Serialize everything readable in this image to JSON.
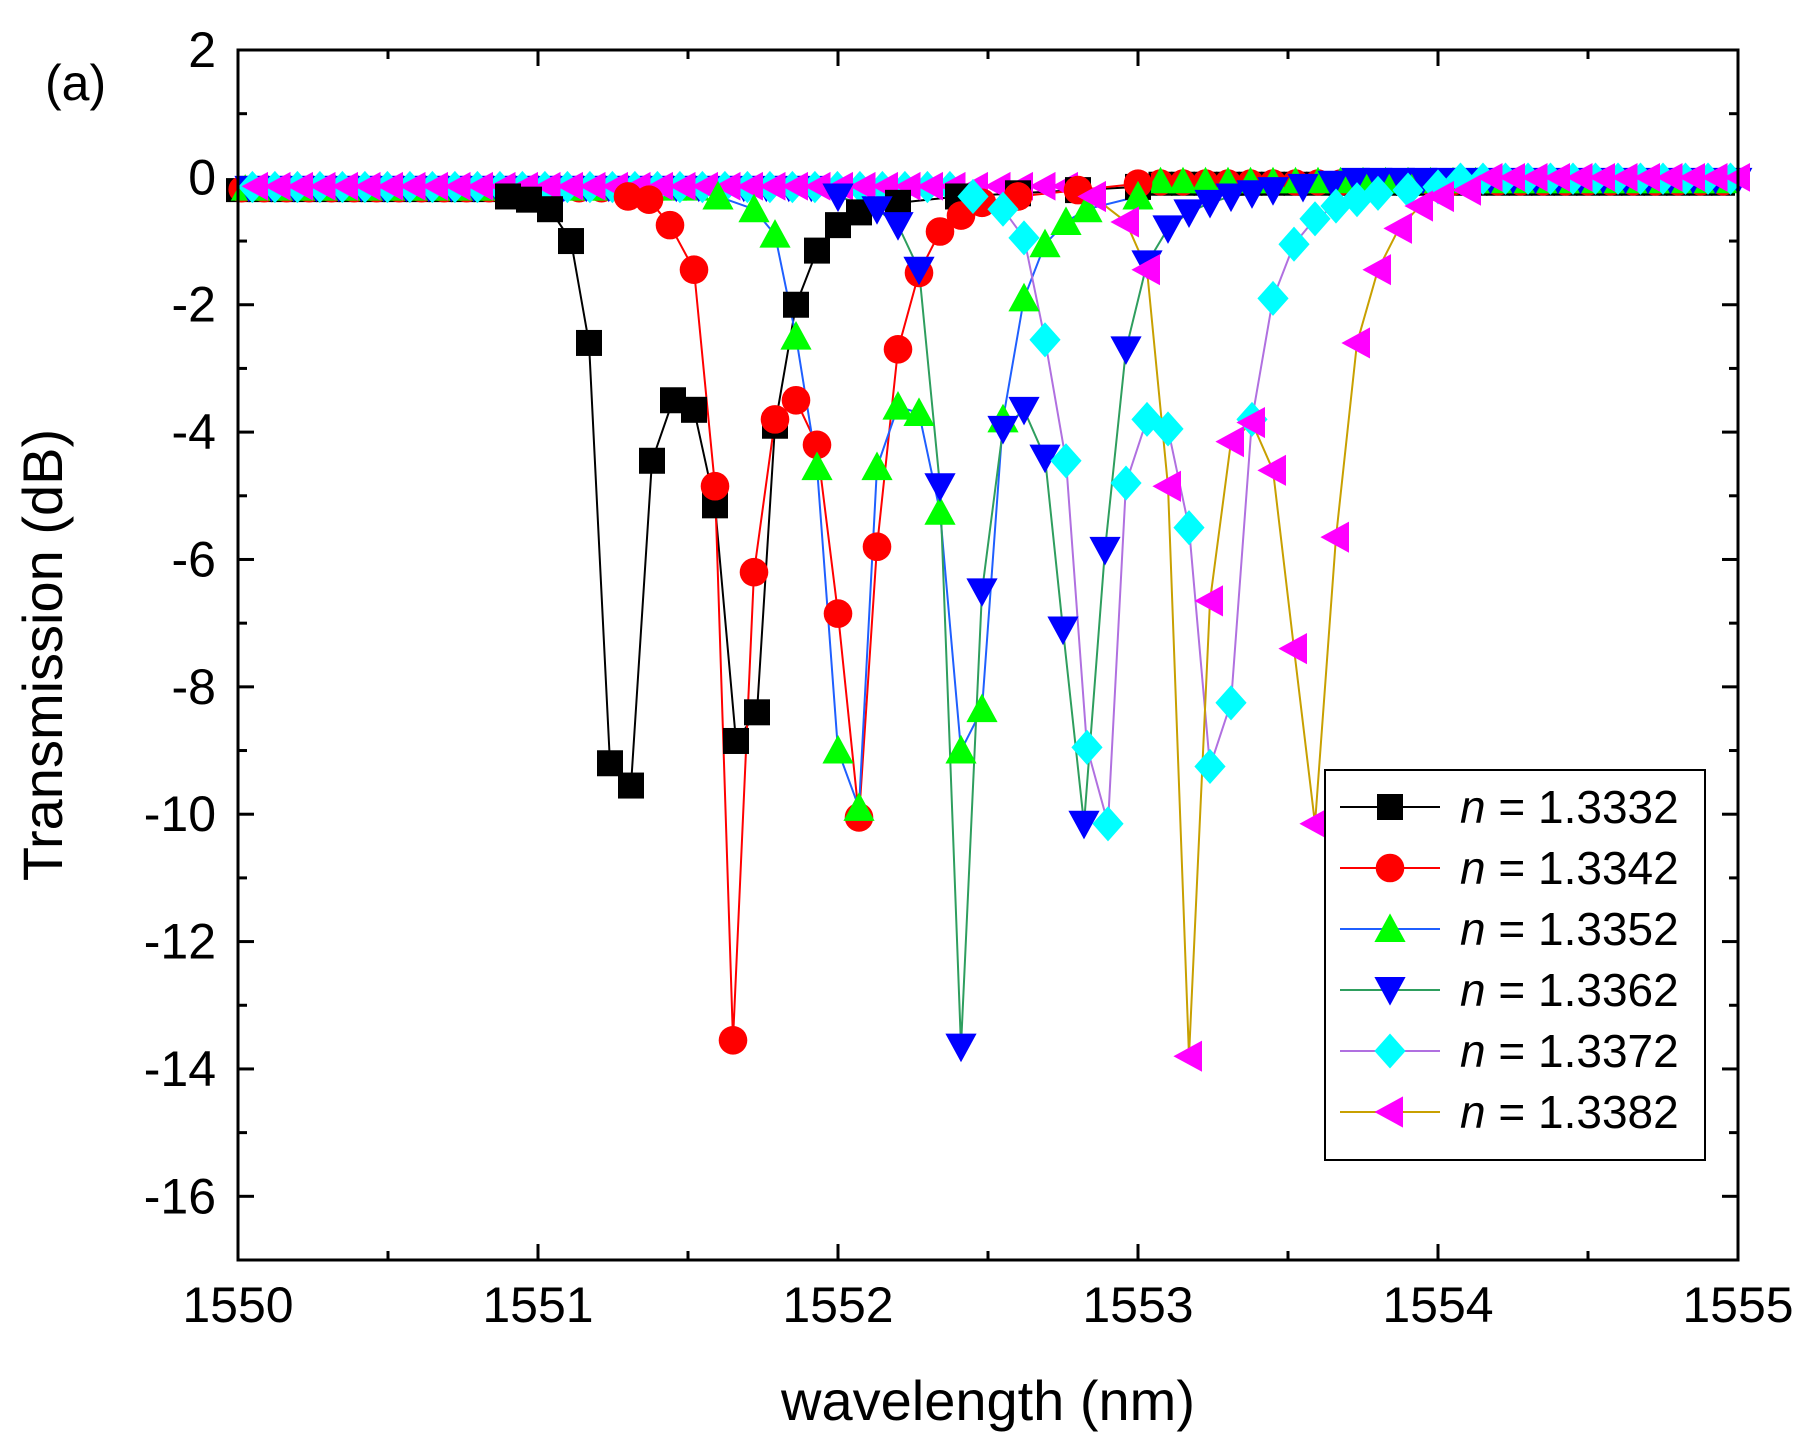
{
  "chart_data": {
    "type": "line",
    "panel_label": "(a)",
    "xlabel": "wavelength (nm)",
    "ylabel": "Transmission (dB)",
    "xlim": [
      1550,
      1555
    ],
    "ylim": [
      -17,
      2
    ],
    "xticks": [
      1550,
      1551,
      1552,
      1553,
      1554,
      1555
    ],
    "xtick_labels": [
      "1550",
      "1551",
      "1552",
      "1553",
      "1554",
      "1555"
    ],
    "yticks": [
      2,
      0,
      -2,
      -4,
      -6,
      -8,
      -10,
      -12,
      -14,
      -16
    ],
    "ytick_labels": [
      "2",
      "0",
      "-2",
      "-4",
      "-6",
      "-8",
      "-10",
      "-12",
      "-14",
      "-16"
    ],
    "legend_position": "bottom-right",
    "legend_prefix": "n",
    "series": [
      {
        "name": "= 1.3332",
        "color": "#000000",
        "line_color": "#000000",
        "marker": "square",
        "x": [
          1550.9,
          1550.97,
          1551.04,
          1551.11,
          1551.17,
          1551.24,
          1551.31,
          1551.38,
          1551.45,
          1551.52,
          1551.59,
          1551.66,
          1551.73,
          1551.79,
          1551.86,
          1551.93,
          1552.0,
          1552.07,
          1552.2,
          1552.4,
          1552.6,
          1552.8,
          1553.0
        ],
        "y": [
          -0.3,
          -0.35,
          -0.5,
          -1.0,
          -2.6,
          -9.2,
          -9.55,
          -4.45,
          -3.5,
          -3.65,
          -5.15,
          -8.85,
          -8.4,
          -3.9,
          -2.0,
          -1.15,
          -0.75,
          -0.55,
          -0.4,
          -0.3,
          -0.25,
          -0.2,
          -0.15
        ]
      },
      {
        "name": "= 1.3342",
        "color": "#ff0000",
        "line_color": "#ff0000",
        "marker": "circle",
        "x": [
          1551.3,
          1551.37,
          1551.44,
          1551.52,
          1551.59,
          1551.65,
          1551.72,
          1551.79,
          1551.86,
          1551.93,
          1552.0,
          1552.07,
          1552.13,
          1552.2,
          1552.27,
          1552.34,
          1552.41,
          1552.48,
          1552.6,
          1552.8,
          1553.0
        ],
        "y": [
          -0.3,
          -0.35,
          -0.75,
          -1.45,
          -4.85,
          -13.55,
          -6.2,
          -3.8,
          -3.5,
          -4.2,
          -6.85,
          -10.05,
          -5.8,
          -2.7,
          -1.5,
          -0.85,
          -0.6,
          -0.4,
          -0.3,
          -0.2,
          -0.1
        ]
      },
      {
        "name": "= 1.3352",
        "color": "#00ff00",
        "line_color": "#1f5fff",
        "marker": "triangle-up",
        "x": [
          1551.6,
          1551.72,
          1551.79,
          1551.86,
          1551.93,
          1552.0,
          1552.07,
          1552.13,
          1552.2,
          1552.27,
          1552.34,
          1552.41,
          1552.48,
          1552.55,
          1552.62,
          1552.69,
          1552.76,
          1552.83,
          1553.0
        ],
        "y": [
          -0.3,
          -0.5,
          -0.9,
          -2.5,
          -4.55,
          -9.0,
          -9.9,
          -4.55,
          -3.6,
          -3.7,
          -5.25,
          -9.0,
          -8.35,
          -3.8,
          -1.9,
          -1.05,
          -0.7,
          -0.5,
          -0.3
        ]
      },
      {
        "name": "= 1.3362",
        "color": "#0000ff",
        "line_color": "#2e9e5e",
        "marker": "triangle-down",
        "x": [
          1552.0,
          1552.13,
          1552.2,
          1552.27,
          1552.34,
          1552.41,
          1552.48,
          1552.55,
          1552.62,
          1552.69,
          1552.75,
          1552.82,
          1552.89,
          1552.96,
          1553.03,
          1553.1,
          1553.17,
          1553.24,
          1553.31,
          1553.38,
          1553.45,
          1553.55,
          1553.65
        ],
        "y": [
          -0.3,
          -0.5,
          -0.75,
          -1.45,
          -4.85,
          -13.65,
          -6.5,
          -3.95,
          -3.65,
          -4.4,
          -7.1,
          -10.15,
          -5.85,
          -2.7,
          -1.35,
          -0.8,
          -0.55,
          -0.4,
          -0.3,
          -0.25,
          -0.2,
          -0.15,
          -0.1
        ]
      },
      {
        "name": "= 1.3372",
        "color": "#00ffff",
        "line_color": "#b070e0",
        "marker": "diamond",
        "x": [
          1552.45,
          1552.55,
          1552.62,
          1552.69,
          1552.76,
          1552.83,
          1552.9,
          1552.96,
          1553.03,
          1553.1,
          1553.17,
          1553.24,
          1553.31,
          1553.38,
          1553.45,
          1553.52,
          1553.59,
          1553.66,
          1553.73,
          1553.8,
          1553.9,
          1554.0
        ],
        "y": [
          -0.3,
          -0.5,
          -0.95,
          -2.55,
          -4.45,
          -8.95,
          -10.15,
          -4.8,
          -3.8,
          -3.95,
          -5.5,
          -9.25,
          -8.25,
          -3.8,
          -1.9,
          -1.05,
          -0.65,
          -0.45,
          -0.35,
          -0.25,
          -0.2,
          -0.15
        ]
      },
      {
        "name": "= 1.3382",
        "color": "#ff00ff",
        "line_color": "#c8a000",
        "marker": "triangle-left",
        "x": [
          1552.85,
          1552.96,
          1553.03,
          1553.1,
          1553.17,
          1553.24,
          1553.31,
          1553.38,
          1553.45,
          1553.52,
          1553.59,
          1553.66,
          1553.73,
          1553.8,
          1553.87,
          1553.94,
          1554.01,
          1554.1
        ],
        "y": [
          -0.3,
          -0.7,
          -1.45,
          -4.85,
          -13.8,
          -6.65,
          -4.15,
          -3.85,
          -4.6,
          -7.4,
          -10.15,
          -5.65,
          -2.6,
          -1.45,
          -0.8,
          -0.45,
          -0.3,
          -0.2
        ]
      }
    ]
  }
}
